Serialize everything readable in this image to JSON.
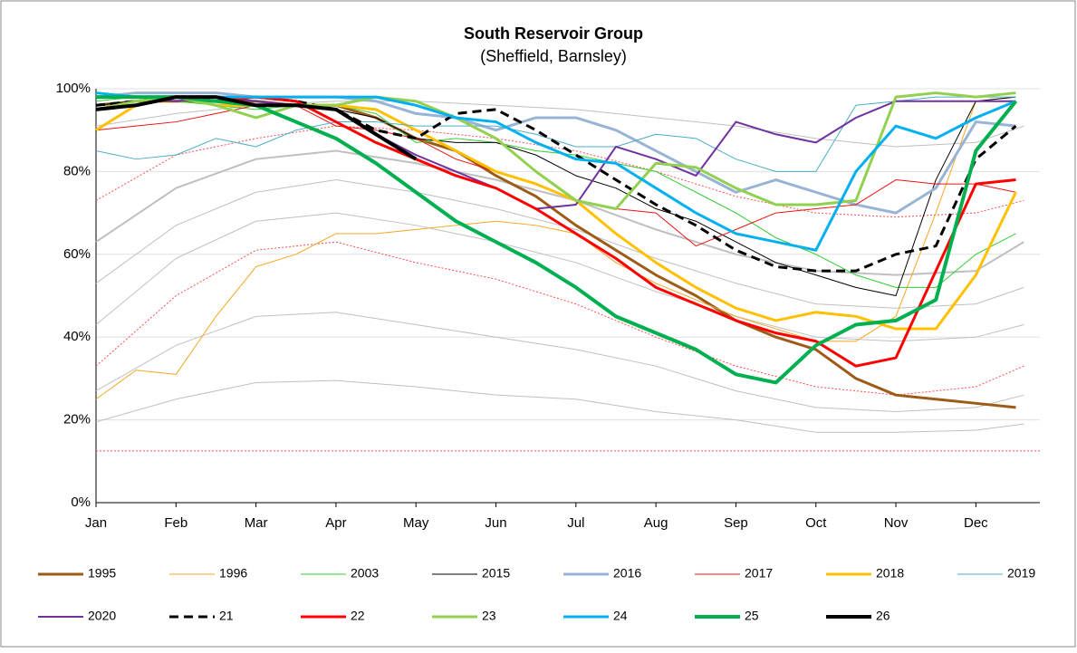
{
  "chart_data": {
    "type": "line",
    "title": "South Reservoir Group",
    "subtitle": "(Sheffield, Barnsley)",
    "x": [
      0,
      0.5,
      1,
      1.5,
      2,
      2.5,
      3,
      3.5,
      4,
      4.5,
      5,
      5.5,
      6,
      6.5,
      7,
      7.5,
      8,
      8.5,
      9,
      9.5,
      10,
      10.5,
      11,
      11.5
    ],
    "xlim": [
      0,
      11.8
    ],
    "xticks": [
      {
        "value": 0,
        "label": "Jan"
      },
      {
        "value": 1,
        "label": "Feb"
      },
      {
        "value": 2,
        "label": "Mar"
      },
      {
        "value": 3,
        "label": "Apr"
      },
      {
        "value": 4,
        "label": "May"
      },
      {
        "value": 5,
        "label": "Jun"
      },
      {
        "value": 6,
        "label": "Jul"
      },
      {
        "value": 7,
        "label": "Aug"
      },
      {
        "value": 8,
        "label": "Sep"
      },
      {
        "value": 9,
        "label": "Oct"
      },
      {
        "value": 10,
        "label": "Nov"
      },
      {
        "value": 11,
        "label": "Dec"
      }
    ],
    "ylim": [
      0,
      100
    ],
    "yticks": [
      {
        "value": 0,
        "label": "0%"
      },
      {
        "value": 20,
        "label": "20%"
      },
      {
        "value": 40,
        "label": "40%"
      },
      {
        "value": 60,
        "label": "60%"
      },
      {
        "value": 80,
        "label": "80%"
      },
      {
        "value": 100,
        "label": "100%"
      }
    ],
    "grid": true,
    "series": [
      {
        "color": "#bfbfbf",
        "width": 1,
        "x": [
          0,
          1,
          2,
          3,
          4,
          5,
          6,
          7,
          8,
          9,
          10,
          11,
          11.6
        ],
        "values": [
          91,
          94,
          96,
          97,
          97,
          96,
          95,
          93,
          91,
          88,
          86,
          87,
          91
        ]
      },
      {
        "color": "#bfbfbf",
        "width": 2,
        "x": [
          0,
          1,
          2,
          3,
          4,
          5,
          6,
          7,
          8,
          9,
          10,
          11,
          11.6
        ],
        "values": [
          63,
          76,
          83,
          85,
          82,
          78,
          73,
          66,
          60,
          56,
          55,
          56,
          63
        ]
      },
      {
        "color": "#bfbfbf",
        "width": 1,
        "x": [
          0,
          1,
          2,
          3,
          4,
          5,
          6,
          7,
          8,
          9,
          10,
          11,
          11.6
        ],
        "values": [
          53,
          67,
          75,
          78,
          75,
          71,
          66,
          59,
          53,
          48,
          47,
          48,
          52
        ]
      },
      {
        "color": "#bfbfbf",
        "width": 1,
        "x": [
          0,
          1,
          2,
          3,
          4,
          5,
          6,
          7,
          8,
          9,
          10,
          11,
          11.6
        ],
        "values": [
          43,
          59,
          68,
          70,
          67,
          63,
          58,
          51,
          45,
          40,
          39,
          40,
          43
        ]
      },
      {
        "color": "#bfbfbf",
        "width": 1,
        "x": [
          0,
          1,
          2,
          3,
          4,
          5,
          6,
          7,
          8,
          9,
          10,
          11,
          11.6
        ],
        "values": [
          27,
          38,
          45,
          46,
          43,
          40,
          37,
          33,
          27,
          23,
          22,
          23,
          26
        ]
      },
      {
        "color": "#bfbfbf",
        "width": 1,
        "x": [
          0,
          1,
          2,
          3,
          4,
          5,
          6,
          7,
          8,
          9,
          10,
          11,
          11.6
        ],
        "values": [
          19.5,
          25,
          29,
          29.5,
          28,
          26,
          25,
          22,
          20,
          17,
          17,
          17.5,
          19
        ]
      },
      {
        "color": "#ff4d4d",
        "width": 1,
        "dash": "2 2",
        "x": [
          0,
          1,
          2,
          3,
          4,
          5,
          6,
          7,
          8,
          9,
          10,
          11,
          11.6
        ],
        "values": [
          73,
          84,
          88,
          91,
          90,
          88,
          85,
          80,
          74,
          70,
          69,
          70,
          73
        ]
      },
      {
        "color": "#ff4d4d",
        "width": 1,
        "dash": "2 2",
        "x": [
          0,
          1,
          2,
          3,
          4,
          5,
          6,
          7,
          8,
          9,
          10,
          11,
          11.6
        ],
        "values": [
          33,
          50,
          61,
          63,
          58,
          54,
          48,
          40,
          33,
          28,
          26,
          28,
          33
        ]
      },
      {
        "color": "#ff4d4d",
        "width": 1,
        "dash": "2 2",
        "x": [
          0,
          11.8
        ],
        "values": [
          12.5,
          12.5
        ]
      },
      {
        "name": "1995",
        "color": "#9c5b17",
        "width": 3,
        "values": [
          96,
          97,
          97,
          97,
          97,
          96,
          96,
          93,
          88,
          85,
          79,
          74,
          67,
          61,
          55,
          50,
          44,
          40,
          37,
          30,
          26,
          25,
          24,
          23
        ]
      },
      {
        "name": "1996",
        "color": "#f5a623",
        "width": 1,
        "values": [
          25,
          32,
          31,
          45,
          57,
          60,
          65,
          65,
          66,
          67,
          68,
          67,
          65,
          58,
          53,
          49,
          45,
          42,
          39,
          39,
          45,
          70,
          97,
          98
        ]
      },
      {
        "name": "2003",
        "color": "#33cc33",
        "width": 1,
        "values": [
          97,
          98,
          97,
          96,
          95,
          96,
          96,
          94,
          87,
          88,
          87,
          85,
          84,
          82,
          80,
          75,
          70,
          64,
          60,
          55,
          52,
          52,
          60,
          65
        ]
      },
      {
        "name": "2015",
        "color": "#000000",
        "width": 1,
        "values": [
          96,
          97,
          98,
          97,
          96,
          96,
          95,
          93,
          88,
          87,
          87,
          84,
          79,
          76,
          71,
          68,
          63,
          58,
          55,
          52,
          50,
          78,
          97,
          98
        ]
      },
      {
        "name": "2016",
        "color": "#98b4d4",
        "width": 3,
        "values": [
          98,
          99,
          99,
          99,
          98,
          98,
          98,
          97,
          94,
          93,
          90,
          93,
          93,
          90,
          85,
          80,
          75,
          78,
          75,
          72,
          70,
          76,
          92,
          91
        ]
      },
      {
        "name": "2017",
        "color": "#ee1111",
        "width": 1,
        "values": [
          90,
          91,
          92,
          94,
          96,
          96,
          91,
          90,
          88,
          83,
          80,
          77,
          73,
          71,
          70,
          62,
          66,
          70,
          71,
          72,
          78,
          77,
          77,
          75
        ]
      },
      {
        "name": "2018",
        "color": "#ffc000",
        "width": 3,
        "values": [
          90,
          96,
          98,
          96,
          96,
          96,
          96,
          95,
          90,
          85,
          80,
          77,
          73,
          65,
          58,
          52,
          47,
          44,
          46,
          45,
          42,
          42,
          55,
          75
        ]
      },
      {
        "name": "2019",
        "color": "#4bacc6",
        "width": 1,
        "values": [
          85,
          83,
          84,
          88,
          86,
          90,
          92,
          92,
          91,
          91,
          91,
          89,
          86,
          86,
          89,
          88,
          83,
          80,
          80,
          96,
          97,
          98,
          98,
          98
        ]
      },
      {
        "name": "2020",
        "color": "#7030a0",
        "width": 2,
        "values": [
          98,
          98,
          97,
          98,
          97,
          96,
          95,
          89,
          84,
          80,
          76,
          71,
          72,
          86,
          83,
          79,
          92,
          89,
          87,
          93,
          97,
          97,
          97,
          97
        ]
      },
      {
        "name": "21",
        "color": "#000000",
        "width": 3,
        "dash": "10 6",
        "values": [
          96,
          97,
          98,
          97,
          98,
          97,
          95,
          90,
          88,
          94,
          95,
          90,
          84,
          78,
          72,
          67,
          61,
          57,
          56,
          56,
          60,
          62,
          83,
          91
        ]
      },
      {
        "name": "22",
        "color": "#ff0000",
        "width": 3,
        "values": [
          98,
          98,
          98,
          97,
          98,
          97,
          92,
          87,
          83,
          79,
          76,
          71,
          65,
          59,
          52,
          48,
          44,
          41,
          39,
          33,
          35,
          56,
          77,
          78
        ]
      },
      {
        "name": "23",
        "color": "#92d050",
        "width": 3,
        "values": [
          95,
          97,
          98,
          96,
          93,
          96,
          96,
          98,
          97,
          93,
          88,
          80,
          73,
          71,
          82,
          81,
          76,
          72,
          72,
          73,
          98,
          99,
          98,
          99
        ]
      },
      {
        "name": "24",
        "color": "#00b0f0",
        "width": 3,
        "values": [
          99,
          98,
          98,
          98,
          98,
          98,
          98,
          98,
          96,
          93,
          92,
          87,
          83,
          82,
          76,
          70,
          65,
          63,
          61,
          80,
          91,
          88,
          93,
          97
        ]
      },
      {
        "name": "25",
        "color": "#00b050",
        "width": 4,
        "values": [
          98,
          98,
          98,
          97,
          96,
          92,
          88,
          82,
          75,
          68,
          63,
          58,
          52,
          45,
          41,
          37,
          31,
          29,
          38,
          43,
          44,
          49,
          85,
          97
        ]
      },
      {
        "name": "26",
        "color": "#000000",
        "width": 4,
        "values": [
          95,
          96,
          98,
          98,
          96,
          96,
          95,
          89,
          83,
          null,
          null,
          null,
          null,
          null,
          null,
          null,
          null,
          null,
          null,
          null,
          null,
          null,
          null,
          null
        ]
      }
    ]
  }
}
